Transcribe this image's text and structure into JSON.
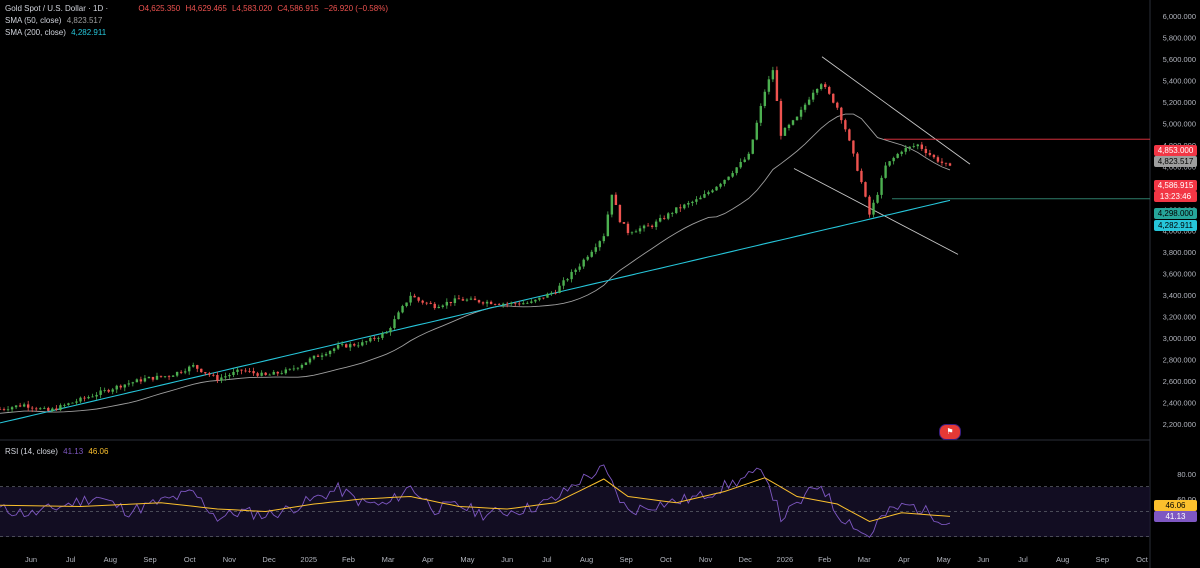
{
  "header": {
    "title": "Gold Spot / U.S. Dollar · 1D ·",
    "open": "O4,625.350",
    "high": "H4,629.465",
    "low": "L4,583.020",
    "close": "C4,586.915",
    "change": "−26.920 (−0.58%)",
    "sma50_label": "SMA (50, close)",
    "sma50_value": "4,823.517",
    "sma200_label": "SMA (200, close)",
    "sma200_value": "4,282.911",
    "rsi_label": "RSI (14, close)",
    "rsi_value": "41.13",
    "rsi_ma_value": "46.06"
  },
  "price_tags": {
    "resistance": "4,853.000",
    "sma50": "4,823.517",
    "last_price": "4,586.915",
    "countdown": "13:23:46",
    "support": "4,298.000",
    "sma200": "4,282.911"
  },
  "rsi_tags": {
    "ma": "46.06",
    "rsi": "41.13"
  },
  "colors": {
    "up": "#26a69a",
    "up_candle": "#4caf50",
    "down": "#ef5350",
    "sma50": "#9e9e9e",
    "sma200": "#26c6da",
    "rsi": "#7e57c2",
    "rsi_ma": "#fbc02d",
    "resistance": "#f23645",
    "support": "#2e7d6b"
  },
  "chart_data": {
    "type": "candlestick",
    "title": "Gold Spot / U.S. Dollar · 1D",
    "y_ticks": [
      "6,000.000",
      "5,800.000",
      "5,600.000",
      "5,400.000",
      "5,200.000",
      "5,000.000",
      "4,800.000",
      "4,600.000",
      "4,400.000",
      "4,200.000",
      "4,000.000",
      "3,800.000",
      "3,600.000",
      "3,400.000",
      "3,200.000",
      "3,000.000",
      "2,800.000",
      "2,600.000",
      "2,400.000",
      "2,200.000"
    ],
    "rsi_ticks": [
      "80.00",
      "60.00"
    ],
    "x_ticks": [
      "Jun",
      "Jul",
      "Aug",
      "Sep",
      "Oct",
      "Nov",
      "Dec",
      "2025",
      "Feb",
      "Mar",
      "Apr",
      "May",
      "Jun",
      "Jul",
      "Aug",
      "Sep",
      "Oct",
      "Nov",
      "Dec",
      "2026",
      "Feb",
      "Mar",
      "Apr",
      "May",
      "Jun",
      "Jul",
      "Aug",
      "Sep",
      "Oct"
    ],
    "price_path": [
      [
        0,
        2340
      ],
      [
        3,
        2380
      ],
      [
        6,
        2320
      ],
      [
        9,
        2400
      ],
      [
        12,
        2480
      ],
      [
        15,
        2560
      ],
      [
        18,
        2620
      ],
      [
        21,
        2650
      ],
      [
        24,
        2740
      ],
      [
        27,
        2620
      ],
      [
        30,
        2700
      ],
      [
        33,
        2650
      ],
      [
        36,
        2700
      ],
      [
        39,
        2820
      ],
      [
        42,
        2920
      ],
      [
        45,
        2950
      ],
      [
        48,
        3050
      ],
      [
        51,
        3400
      ],
      [
        52,
        3350
      ],
      [
        54,
        3300
      ],
      [
        57,
        3360
      ],
      [
        60,
        3340
      ],
      [
        63,
        3320
      ],
      [
        66,
        3330
      ],
      [
        69,
        3440
      ],
      [
        72,
        3680
      ],
      [
        75,
        3960
      ],
      [
        76,
        4350
      ],
      [
        77,
        4100
      ],
      [
        78,
        3990
      ],
      [
        81,
        4050
      ],
      [
        84,
        4200
      ],
      [
        87,
        4300
      ],
      [
        90,
        4480
      ],
      [
        93,
        4700
      ],
      [
        94,
        5000
      ],
      [
        95,
        5300
      ],
      [
        96,
        5500
      ],
      [
        97,
        4900
      ],
      [
        99,
        5050
      ],
      [
        101,
        5300
      ],
      [
        102,
        5380
      ],
      [
        104,
        5150
      ],
      [
        105,
        4950
      ],
      [
        106,
        4700
      ],
      [
        107,
        4450
      ],
      [
        108,
        4150
      ],
      [
        109,
        4350
      ],
      [
        110,
        4600
      ],
      [
        112,
        4750
      ],
      [
        114,
        4800
      ],
      [
        116,
        4680
      ],
      [
        118,
        4587
      ]
    ],
    "sma50": {
      "name": "SMA (50, close)",
      "last": 4823.517
    },
    "sma200": {
      "name": "SMA (200, close)",
      "last": 4282.911
    },
    "lines": {
      "resistance": 4853.0,
      "support": 4298.0,
      "last": 4586.915
    },
    "rsi_path": [
      [
        0,
        52
      ],
      [
        4,
        48
      ],
      [
        8,
        55
      ],
      [
        12,
        62
      ],
      [
        16,
        50
      ],
      [
        20,
        58
      ],
      [
        24,
        65
      ],
      [
        27,
        45
      ],
      [
        30,
        50
      ],
      [
        33,
        47
      ],
      [
        36,
        52
      ],
      [
        39,
        60
      ],
      [
        42,
        68
      ],
      [
        45,
        57
      ],
      [
        48,
        55
      ],
      [
        51,
        70
      ],
      [
        54,
        52
      ],
      [
        57,
        55
      ],
      [
        60,
        48
      ],
      [
        63,
        50
      ],
      [
        66,
        53
      ],
      [
        69,
        60
      ],
      [
        72,
        75
      ],
      [
        75,
        84
      ],
      [
        77,
        60
      ],
      [
        78,
        50
      ],
      [
        81,
        55
      ],
      [
        84,
        58
      ],
      [
        87,
        62
      ],
      [
        90,
        70
      ],
      [
        93,
        78
      ],
      [
        95,
        82
      ],
      [
        97,
        45
      ],
      [
        99,
        55
      ],
      [
        101,
        68
      ],
      [
        102,
        72
      ],
      [
        104,
        48
      ],
      [
        106,
        40
      ],
      [
        107,
        33
      ],
      [
        108,
        30
      ],
      [
        109,
        42
      ],
      [
        111,
        52
      ],
      [
        113,
        55
      ],
      [
        115,
        50
      ],
      [
        118,
        41.13
      ]
    ],
    "rsi_ma_path": [
      [
        0,
        55
      ],
      [
        10,
        54
      ],
      [
        20,
        57
      ],
      [
        27,
        52
      ],
      [
        33,
        50
      ],
      [
        39,
        56
      ],
      [
        45,
        60
      ],
      [
        51,
        62
      ],
      [
        57,
        54
      ],
      [
        63,
        52
      ],
      [
        69,
        57
      ],
      [
        75,
        76
      ],
      [
        78,
        62
      ],
      [
        84,
        57
      ],
      [
        90,
        66
      ],
      [
        95,
        77
      ],
      [
        99,
        62
      ],
      [
        104,
        56
      ],
      [
        108,
        42
      ],
      [
        112,
        49
      ],
      [
        118,
        46.06
      ]
    ]
  }
}
